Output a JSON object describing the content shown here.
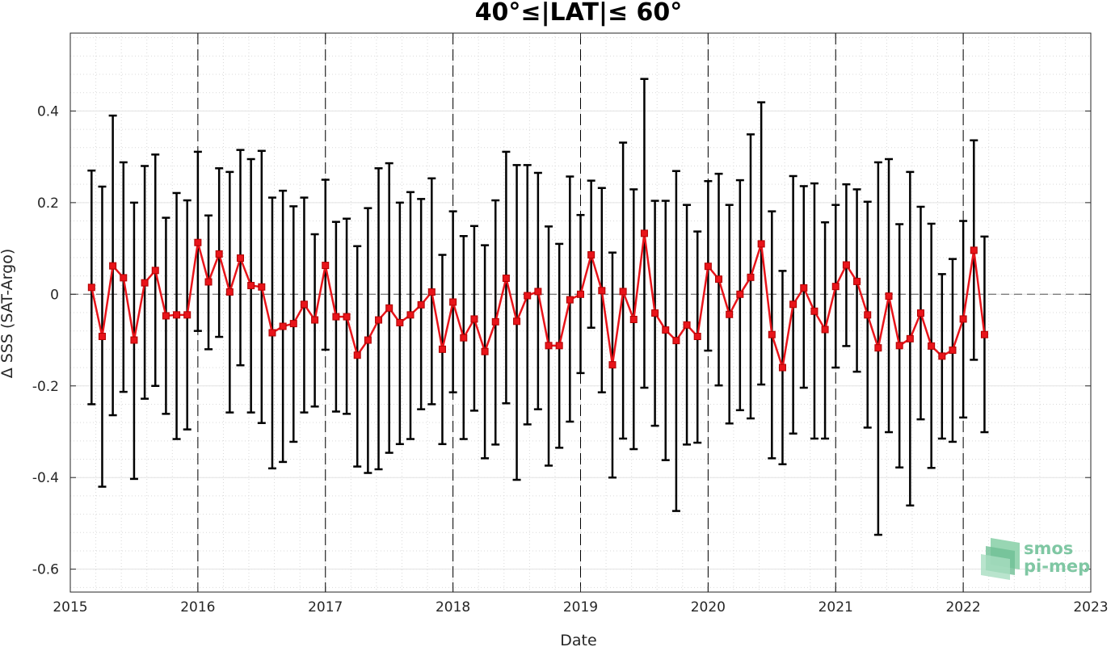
{
  "chart_data": {
    "type": "line",
    "title": "40°≤|LAT|≤ 60°",
    "xlabel": "Date",
    "ylabel": "Δ SSS (SAT-Argo)",
    "xlim": [
      2015,
      2023
    ],
    "ylim": [
      -0.65,
      0.57
    ],
    "xticks": [
      "2015",
      "2016",
      "2017",
      "2018",
      "2019",
      "2020",
      "2021",
      "2022",
      "2023"
    ],
    "yticks": [
      "0.4",
      "0.2",
      "0",
      "-0.2",
      "-0.4",
      "-0.6"
    ],
    "grid": true,
    "year_dividers": [
      "2016",
      "2017",
      "2018",
      "2019",
      "2020",
      "2021",
      "2022"
    ],
    "zero_reference": 0,
    "series": [
      {
        "color": "#e8141a",
        "errorbar_color": "#000000",
        "x": [
          "2015-03",
          "2015-04",
          "2015-05",
          "2015-06",
          "2015-07",
          "2015-08",
          "2015-09",
          "2015-10",
          "2015-11",
          "2015-12",
          "2016-01",
          "2016-02",
          "2016-03",
          "2016-04",
          "2016-05",
          "2016-06",
          "2016-07",
          "2016-08",
          "2016-09",
          "2016-10",
          "2016-11",
          "2016-12",
          "2017-01",
          "2017-02",
          "2017-03",
          "2017-04",
          "2017-05",
          "2017-06",
          "2017-07",
          "2017-08",
          "2017-09",
          "2017-10",
          "2017-11",
          "2017-12",
          "2018-01",
          "2018-02",
          "2018-03",
          "2018-04",
          "2018-05",
          "2018-06",
          "2018-07",
          "2018-08",
          "2018-09",
          "2018-10",
          "2018-11",
          "2018-12",
          "2019-01",
          "2019-02",
          "2019-03",
          "2019-04",
          "2019-05",
          "2019-06",
          "2019-07",
          "2019-08",
          "2019-09",
          "2019-10",
          "2019-11",
          "2019-12",
          "2020-01",
          "2020-02",
          "2020-03",
          "2020-04",
          "2020-05",
          "2020-06",
          "2020-07",
          "2020-08",
          "2020-09",
          "2020-10",
          "2020-11",
          "2020-12",
          "2021-01",
          "2021-02",
          "2021-03",
          "2021-04",
          "2021-05",
          "2021-06",
          "2021-07",
          "2021-08",
          "2021-09",
          "2021-10",
          "2021-11",
          "2021-12",
          "2022-01",
          "2022-02",
          "2022-03"
        ],
        "y": [
          0.015,
          -0.092,
          0.062,
          0.036,
          -0.1,
          0.025,
          0.052,
          -0.047,
          -0.045,
          -0.045,
          0.113,
          0.027,
          0.088,
          0.005,
          0.079,
          0.019,
          0.016,
          -0.084,
          -0.07,
          -0.064,
          -0.022,
          -0.056,
          0.063,
          -0.049,
          -0.049,
          -0.133,
          -0.1,
          -0.056,
          -0.03,
          -0.062,
          -0.045,
          -0.023,
          0.005,
          -0.12,
          -0.017,
          -0.095,
          -0.054,
          -0.125,
          -0.06,
          0.035,
          -0.059,
          -0.003,
          0.006,
          -0.112,
          -0.112,
          -0.012,
          0.0,
          0.086,
          0.008,
          -0.154,
          0.006,
          -0.055,
          0.133,
          -0.041,
          -0.078,
          -0.101,
          -0.067,
          -0.092,
          0.061,
          0.033,
          -0.044,
          0.0,
          0.037,
          0.11,
          -0.088,
          -0.16,
          -0.022,
          0.014,
          -0.037,
          -0.077,
          0.017,
          0.064,
          0.028,
          -0.045,
          -0.117,
          -0.004,
          -0.112,
          -0.097,
          -0.041,
          -0.113,
          -0.135,
          -0.122,
          -0.054,
          0.096,
          -0.088
        ],
        "err_upper": [
          0.27,
          0.235,
          0.39,
          0.288,
          0.2,
          0.28,
          0.305,
          0.167,
          0.221,
          0.205,
          0.311,
          0.172,
          0.275,
          0.267,
          0.315,
          0.295,
          0.313,
          0.211,
          0.226,
          0.192,
          0.211,
          0.131,
          0.25,
          0.158,
          0.165,
          0.105,
          0.188,
          0.275,
          0.286,
          0.2,
          0.223,
          0.208,
          0.253,
          0.086,
          0.181,
          0.127,
          0.149,
          0.107,
          0.205,
          0.311,
          0.282,
          0.282,
          0.265,
          0.148,
          0.11,
          0.257,
          0.173,
          0.248,
          0.232,
          0.091,
          0.331,
          0.229,
          0.47,
          0.204,
          0.204,
          0.269,
          0.195,
          0.137,
          0.247,
          0.263,
          0.195,
          0.249,
          0.349,
          0.419,
          0.181,
          0.051,
          0.258,
          0.236,
          0.242,
          0.157,
          0.195,
          0.24,
          0.229,
          0.202,
          0.288,
          0.295,
          0.153,
          0.267,
          0.191,
          0.154,
          0.044,
          0.077,
          0.16,
          0.336,
          0.126
        ],
        "err_lower": [
          -0.24,
          -0.42,
          -0.264,
          -0.213,
          -0.403,
          -0.228,
          -0.2,
          -0.261,
          -0.316,
          -0.295,
          -0.08,
          -0.12,
          -0.093,
          -0.258,
          -0.155,
          -0.258,
          -0.281,
          -0.38,
          -0.366,
          -0.322,
          -0.258,
          -0.245,
          -0.121,
          -0.256,
          -0.261,
          -0.376,
          -0.39,
          -0.382,
          -0.346,
          -0.327,
          -0.316,
          -0.251,
          -0.24,
          -0.327,
          -0.214,
          -0.316,
          -0.254,
          -0.358,
          -0.328,
          -0.238,
          -0.405,
          -0.284,
          -0.251,
          -0.374,
          -0.335,
          -0.278,
          -0.172,
          -0.073,
          -0.214,
          -0.4,
          -0.315,
          -0.338,
          -0.204,
          -0.287,
          -0.362,
          -0.473,
          -0.328,
          -0.324,
          -0.123,
          -0.199,
          -0.282,
          -0.253,
          -0.271,
          -0.197,
          -0.358,
          -0.371,
          -0.304,
          -0.204,
          -0.315,
          -0.315,
          -0.16,
          -0.113,
          -0.169,
          -0.291,
          -0.525,
          -0.301,
          -0.378,
          -0.461,
          -0.273,
          -0.379,
          -0.315,
          -0.322,
          -0.269,
          -0.143,
          -0.301
        ]
      }
    ]
  },
  "logo": {
    "line1": "smos",
    "line2": "pi-mep"
  }
}
